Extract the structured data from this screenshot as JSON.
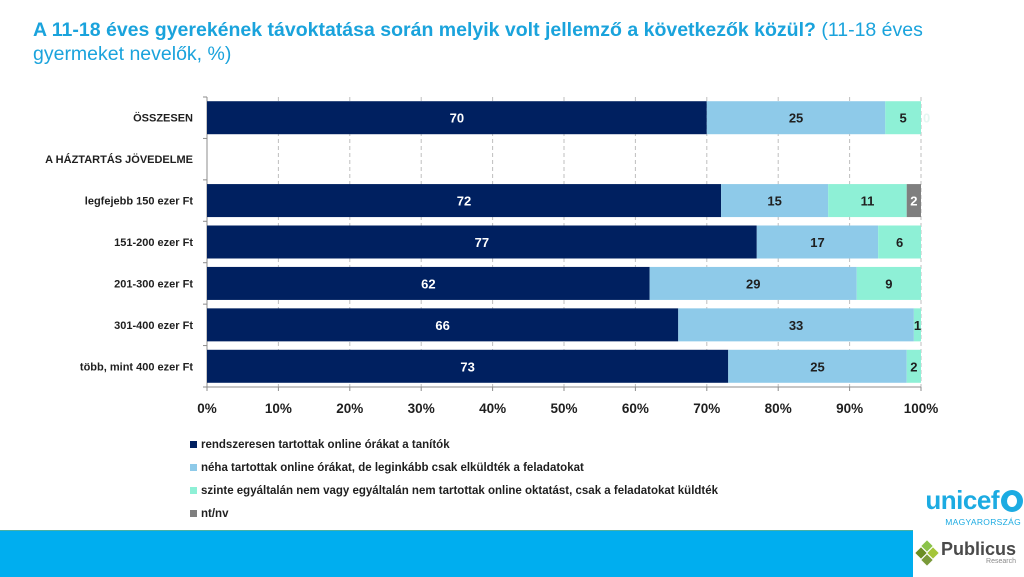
{
  "title": {
    "question": "A 11-18 éves gyerekének távoktatása során melyik volt jellemző a következők közül?",
    "subtitle": "(11-18 éves gyermeket nevelők, %)"
  },
  "chart_data": {
    "type": "bar",
    "orientation": "horizontal",
    "stacked": true,
    "title": "A 11-18 éves gyerekének távoktatása során melyik volt jellemző a következők közül? (11-18 éves gyermeket nevelők, %)",
    "xlabel": "",
    "ylabel": "",
    "xlim": [
      0,
      100
    ],
    "x_ticks": [
      "0%",
      "10%",
      "20%",
      "30%",
      "40%",
      "50%",
      "60%",
      "70%",
      "80%",
      "90%",
      "100%"
    ],
    "grid": "vertical-dashed",
    "legend_position": "bottom-left",
    "categories": [
      "ÖSSZESEN",
      "A HÁZTARTÁS JÖVEDELME",
      "legfejebb 150 ezer Ft",
      "151-200 ezer Ft",
      "201-300 ezer Ft",
      "301-400 ezer Ft",
      "több, mint 400 ezer Ft"
    ],
    "series": [
      {
        "name": "rendszeresen tartottak online órákat a tanítók",
        "color": "#002060",
        "label_color": "#ffffff",
        "values": [
          70,
          null,
          72,
          77,
          62,
          66,
          73
        ]
      },
      {
        "name": "néha tartottak online órákat, de leginkább csak elküldték a feladatokat",
        "color": "#8ecae9",
        "label_color": "#1f1f1f",
        "values": [
          25,
          null,
          15,
          17,
          29,
          33,
          25
        ]
      },
      {
        "name": "szinte egyáltalán nem vagy egyáltalán nem tartottak online oktatást, csak a feladatokat küldték",
        "color": "#8ef0d6",
        "label_color": "#1f1f1f",
        "values": [
          5,
          null,
          11,
          6,
          9,
          1,
          2
        ]
      },
      {
        "name": "nt/nv",
        "color": "#7f7f7f",
        "label_color": "#ffffff",
        "values": [
          0,
          null,
          2,
          0,
          0,
          0,
          0
        ]
      }
    ],
    "value_labels": [
      [
        "70",
        "25",
        "5",
        "0"
      ],
      [],
      [
        "72",
        "15",
        "11",
        "2"
      ],
      [
        "77",
        "17",
        "6",
        ""
      ],
      [
        "62",
        "29",
        "9",
        ""
      ],
      [
        "66",
        "33",
        "1",
        ""
      ],
      [
        "73",
        "25",
        "2",
        ""
      ]
    ]
  },
  "logos": {
    "unicef": "unicef",
    "unicef_country": "MAGYARORSZÁG",
    "publicus": "Publicus",
    "publicus_sub": "Research"
  }
}
